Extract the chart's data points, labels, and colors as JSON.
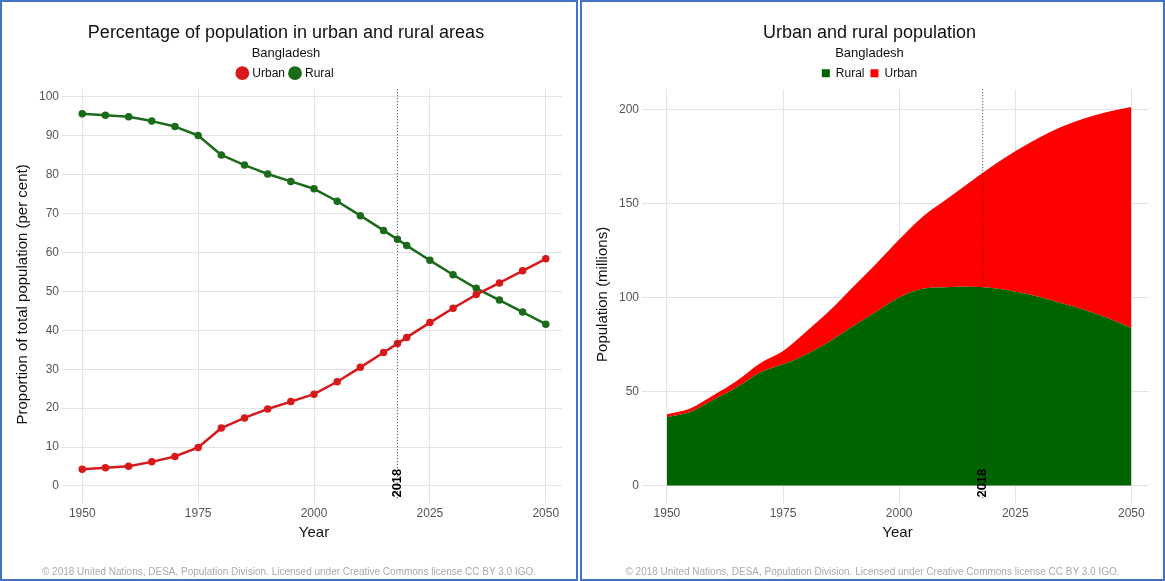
{
  "chart_data": [
    {
      "type": "line",
      "title": "Percentage of population in urban and rural areas",
      "subtitle": "Bangladesh",
      "xlabel": "Year",
      "ylabel": "Proportion of total population (per cent)",
      "x": [
        1950,
        1955,
        1960,
        1965,
        1970,
        1975,
        1980,
        1985,
        1990,
        1995,
        2000,
        2005,
        2010,
        2015,
        2018,
        2020,
        2025,
        2030,
        2035,
        2040,
        2045,
        2050
      ],
      "series": [
        {
          "name": "Urban",
          "color": "#d7191c",
          "values": [
            4.3,
            4.7,
            5.1,
            6.2,
            7.6,
            9.9,
            14.9,
            17.5,
            19.8,
            21.7,
            23.6,
            26.8,
            30.5,
            34.3,
            36.6,
            38.2,
            42.0,
            45.7,
            49.2,
            52.2,
            55.3,
            58.4
          ]
        },
        {
          "name": "Rural",
          "color": "#1a6b1a",
          "values": [
            95.7,
            95.3,
            94.9,
            93.8,
            92.4,
            90.1,
            85.1,
            82.5,
            80.2,
            78.3,
            76.4,
            73.2,
            69.5,
            65.7,
            63.4,
            61.8,
            58.0,
            54.3,
            50.8,
            47.8,
            44.7,
            41.6
          ]
        }
      ],
      "xlim": [
        1946.5,
        2053.5
      ],
      "xticks": [
        1950,
        1975,
        2000,
        2025,
        2050
      ],
      "ylim": [
        -3.5,
        102
      ],
      "yticks": [
        0,
        10,
        20,
        30,
        40,
        50,
        60,
        70,
        80,
        90,
        100
      ],
      "grid": true,
      "legend": "top",
      "marker": "circle",
      "line_style": "solid",
      "ref_lines": [
        {
          "axis": "x",
          "value": 2018,
          "label": "2018",
          "line_style": "dotted"
        }
      ],
      "annotations": [
        "© 2018 United Nations, DESA, Population Division. Licensed under Creative Commons license CC BY 3.0 IGO."
      ]
    },
    {
      "type": "area",
      "title": "Urban and rural population",
      "subtitle": "Bangladesh",
      "xlabel": "Year",
      "ylabel": "Population (millions)",
      "stacked": true,
      "x": [
        1950,
        1955,
        1960,
        1965,
        1970,
        1975,
        1980,
        1985,
        1990,
        1995,
        2000,
        2005,
        2010,
        2015,
        2020,
        2025,
        2030,
        2035,
        2040,
        2045,
        2050
      ],
      "series": [
        {
          "name": "Rural",
          "color": "#006400",
          "values": [
            36.4,
            39.1,
            45.6,
            52.2,
            60.1,
            64.5,
            69.8,
            76.7,
            84.7,
            92.4,
            100.1,
            104.7,
            105.6,
            105.8,
            105.1,
            103.2,
            100.5,
            97.0,
            93.5,
            89.0,
            83.8
          ]
        },
        {
          "name": "Urban",
          "color": "#ff0000",
          "values": [
            1.6,
            1.9,
            2.4,
            3.4,
            4.9,
            7.1,
            12.2,
            16.3,
            20.9,
            25.6,
            30.9,
            38.3,
            46.4,
            55.2,
            64.9,
            74.8,
            84.5,
            94.0,
            102.1,
            110.0,
            117.7
          ]
        }
      ],
      "xlim": [
        1945.5,
        2053.8
      ],
      "xticks": [
        1950,
        1975,
        2000,
        2025,
        2050
      ],
      "ylim": [
        -7.5,
        211
      ],
      "yticks": [
        0,
        50,
        100,
        150,
        200
      ],
      "grid": true,
      "legend": "top",
      "ref_lines": [
        {
          "axis": "x",
          "value": 2018,
          "label": "2018",
          "line_style": "dotted"
        }
      ],
      "annotations": [
        "© 2018 United Nations, DESA, Population Division. Licensed under Creative Commons license CC BY 3.0 IGO."
      ]
    }
  ]
}
